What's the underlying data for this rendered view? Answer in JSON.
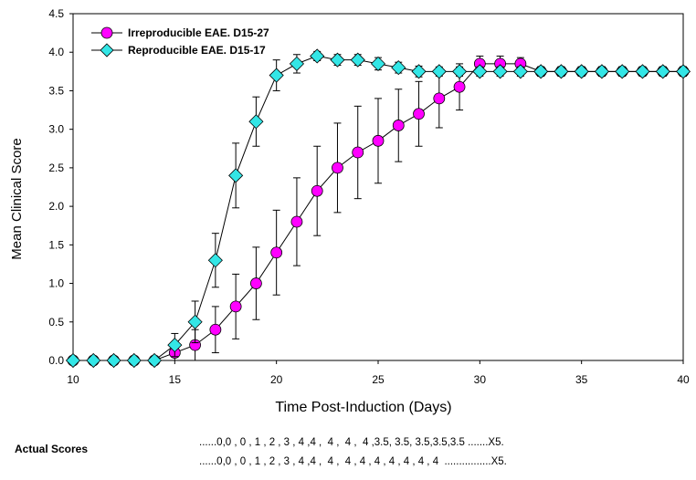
{
  "chart_data": {
    "type": "line",
    "title": "",
    "xlabel": "Time Post-Induction (Days)",
    "ylabel": "Mean Clinical Score",
    "xlim": [
      10,
      40
    ],
    "ylim": [
      0,
      4.5
    ],
    "xticks": [
      10,
      15,
      20,
      25,
      30,
      35,
      40
    ],
    "yticks": [
      "0.0",
      "0.5",
      "1.0",
      "1.5",
      "2.0",
      "2.5",
      "3.0",
      "3.5",
      "4.0",
      "4.5"
    ],
    "legend_position": "top-left",
    "series": [
      {
        "name": "Irreproducible EAE. D15-27",
        "marker": "circle",
        "color": "#ff00ff",
        "x": [
          10,
          11,
          12,
          13,
          14,
          15,
          16,
          17,
          18,
          19,
          20,
          21,
          22,
          23,
          24,
          25,
          26,
          27,
          28,
          29,
          30,
          31,
          32,
          33,
          34,
          35,
          36,
          37,
          38,
          39,
          40
        ],
        "y": [
          0,
          0,
          0,
          0,
          0,
          0.1,
          0.2,
          0.4,
          0.7,
          1.0,
          1.4,
          1.8,
          2.2,
          2.5,
          2.7,
          2.85,
          3.05,
          3.2,
          3.4,
          3.55,
          3.85,
          3.85,
          3.85,
          3.75,
          3.75,
          3.75,
          3.75,
          3.75,
          3.75,
          3.75,
          3.75
        ],
        "err": [
          0,
          0,
          0,
          0,
          0,
          0.1,
          0.2,
          0.3,
          0.42,
          0.47,
          0.55,
          0.57,
          0.58,
          0.58,
          0.6,
          0.55,
          0.47,
          0.42,
          0.38,
          0.3,
          0.1,
          0.1,
          0.08,
          0.06,
          0.06,
          0.06,
          0.06,
          0.06,
          0.06,
          0.06,
          0.06
        ]
      },
      {
        "name": "Reproducible EAE. D15-17",
        "marker": "diamond",
        "color": "#33e6e6",
        "x": [
          10,
          11,
          12,
          13,
          14,
          15,
          16,
          17,
          18,
          19,
          20,
          21,
          22,
          23,
          24,
          25,
          26,
          27,
          28,
          29,
          30,
          31,
          32,
          33,
          34,
          35,
          36,
          37,
          38,
          39,
          40
        ],
        "y": [
          0,
          0,
          0,
          0,
          0,
          0.2,
          0.5,
          1.3,
          2.4,
          3.1,
          3.7,
          3.85,
          3.95,
          3.9,
          3.9,
          3.85,
          3.8,
          3.75,
          3.75,
          3.75,
          3.75,
          3.75,
          3.75,
          3.75,
          3.75,
          3.75,
          3.75,
          3.75,
          3.75,
          3.75,
          3.75
        ],
        "err": [
          0,
          0,
          0,
          0,
          0,
          0.15,
          0.27,
          0.35,
          0.42,
          0.32,
          0.2,
          0.12,
          0.06,
          0.07,
          0.07,
          0.08,
          0.07,
          0.07,
          0.06,
          0.06,
          0.06,
          0.06,
          0.06,
          0.06,
          0.06,
          0.06,
          0.06,
          0.06,
          0.06,
          0.06,
          0.06
        ]
      }
    ]
  },
  "actual_scores": {
    "label": "Actual Scores",
    "line1": "......0,0 , 0 , 1 , 2 , 3 , 4 ,4 ,  4 ,  4 ,  4 ,3.5, 3.5, 3.5,3.5,3.5 .......X5.",
    "line2": "......0,0 , 0 , 1 , 2 , 3 , 4 ,4 ,  4 ,  4 , 4 , 4 , 4 , 4 , 4 , 4  ................X5."
  }
}
